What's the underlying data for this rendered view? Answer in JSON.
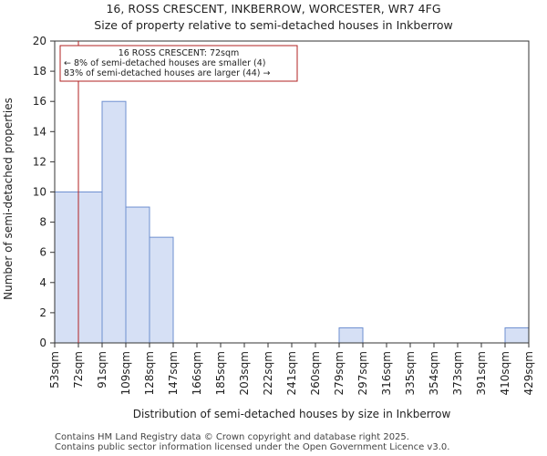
{
  "chart_data": {
    "type": "bar",
    "title": "16, ROSS CRESCENT, INKBERROW, WORCESTER, WR7 4FG",
    "subtitle": "Size of property relative to semi-detached houses in Inkberrow",
    "xlabel": "Distribution of semi-detached houses by size in Inkberrow",
    "ylabel": "Number of semi-detached properties",
    "ylim": [
      0,
      20
    ],
    "yticks": [
      0,
      2,
      4,
      6,
      8,
      10,
      12,
      14,
      16,
      18,
      20
    ],
    "bin_edges": [
      "53sqm",
      "72sqm",
      "91sqm",
      "109sqm",
      "128sqm",
      "147sqm",
      "166sqm",
      "185sqm",
      "203sqm",
      "222sqm",
      "241sqm",
      "260sqm",
      "279sqm",
      "297sqm",
      "316sqm",
      "335sqm",
      "354sqm",
      "373sqm",
      "391sqm",
      "410sqm",
      "429sqm"
    ],
    "values": [
      10,
      10,
      16,
      9,
      7,
      0,
      0,
      0,
      0,
      0,
      0,
      0,
      1,
      0,
      0,
      0,
      0,
      0,
      0,
      1
    ],
    "bar_color": "#d6e0f5",
    "bar_edge_color": "#6e8fd0",
    "marker": {
      "bin_position": 1,
      "color": "#b22222",
      "annotation": [
        "16 ROSS CRESCENT: 72sqm",
        "← 8% of semi-detached houses are smaller (4)",
        "83% of semi-detached houses are larger (44) →"
      ]
    },
    "grid": false
  },
  "footer": {
    "line1": "Contains HM Land Registry data © Crown copyright and database right 2025.",
    "line2": "Contains public sector information licensed under the Open Government Licence v3.0."
  }
}
